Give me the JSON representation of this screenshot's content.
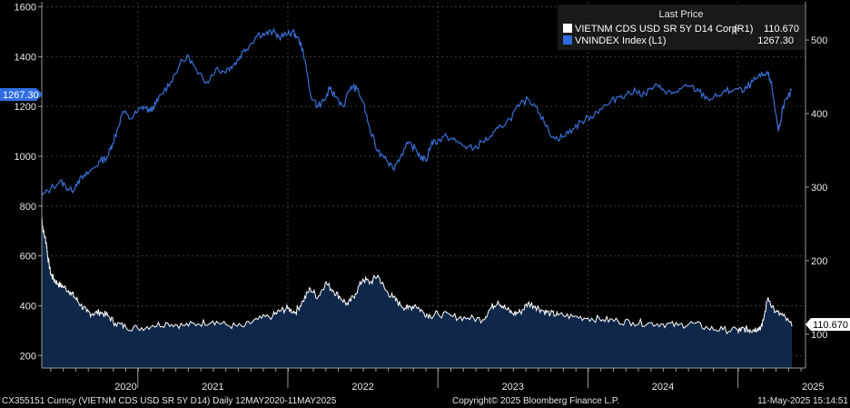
{
  "chart_data": {
    "type": "line",
    "legend_position": "top-right",
    "legend_title": "Last Price",
    "grid": true,
    "x_start": "12MAY2020",
    "x_end": "11MAY2025",
    "x_year_ticks": [
      "2020",
      "2021",
      "2022",
      "2023",
      "2024",
      "2025"
    ],
    "x_year_tick_positions": [
      2020.42,
      2021.0,
      2022.0,
      2023.0,
      2024.0,
      2025.0
    ],
    "left_axis": {
      "ylim": [
        150,
        1620
      ],
      "ticks": [
        200,
        400,
        600,
        800,
        1000,
        1200,
        1400,
        1600
      ]
    },
    "right_axis": {
      "ylim": [
        54,
        552
      ],
      "ticks": [
        100,
        200,
        300,
        400,
        500
      ]
    },
    "series": [
      {
        "name": "VIETNM CDS USD SR 5Y D14 Corp",
        "axis_tag": "(R1)",
        "axis": "right",
        "last_price": "110.670",
        "color": "#ffffff",
        "fill": "#0f2748",
        "x": [
          2020.36,
          2020.37,
          2020.39,
          2020.4,
          2020.42,
          2020.44,
          2020.47,
          2020.5,
          2020.55,
          2020.58,
          2020.62,
          2020.66,
          2020.7,
          2020.75,
          2020.8,
          2020.85,
          2020.92,
          2021.0,
          2021.1,
          2021.2,
          2021.3,
          2021.4,
          2021.5,
          2021.6,
          2021.7,
          2021.8,
          2021.9,
          2021.95,
          2022.0,
          2022.05,
          2022.1,
          2022.15,
          2022.2,
          2022.25,
          2022.3,
          2022.35,
          2022.4,
          2022.45,
          2022.5,
          2022.55,
          2022.6,
          2022.65,
          2022.7,
          2022.75,
          2022.8,
          2022.85,
          2022.9,
          2022.95,
          2023.0,
          2023.1,
          2023.2,
          2023.3,
          2023.35,
          2023.4,
          2023.45,
          2023.5,
          2023.55,
          2023.6,
          2023.65,
          2023.7,
          2023.75,
          2023.8,
          2023.9,
          2024.0,
          2024.1,
          2024.2,
          2024.3,
          2024.4,
          2024.5,
          2024.6,
          2024.7,
          2024.8,
          2024.9,
          2025.0,
          2025.02,
          2025.05,
          2025.08,
          2025.1,
          2025.13,
          2025.16,
          2025.2,
          2025.25,
          2025.3,
          2025.36
        ],
        "values": [
          260,
          240,
          225,
          205,
          182,
          175,
          168,
          165,
          158,
          150,
          140,
          130,
          128,
          130,
          125,
          115,
          110,
          108,
          112,
          115,
          112,
          114,
          118,
          112,
          110,
          120,
          125,
          132,
          135,
          130,
          145,
          162,
          150,
          170,
          160,
          150,
          140,
          155,
          175,
          170,
          180,
          160,
          150,
          140,
          135,
          140,
          130,
          125,
          128,
          124,
          122,
          120,
          135,
          145,
          135,
          128,
          130,
          142,
          138,
          132,
          128,
          126,
          124,
          122,
          120,
          118,
          116,
          115,
          114,
          112,
          115,
          108,
          106,
          105,
          106,
          107,
          106,
          106,
          108,
          110,
          150,
          130,
          125,
          110.67
        ]
      },
      {
        "name": "VNINDEX Index",
        "axis_tag": "(L1)",
        "axis": "left",
        "last_price": "1267.30",
        "color": "#3a6fd8",
        "x": [
          2020.36,
          2020.42,
          2020.48,
          2020.52,
          2020.56,
          2020.6,
          2020.65,
          2020.7,
          2020.75,
          2020.8,
          2020.83,
          2020.86,
          2020.9,
          2020.95,
          2021.0,
          2021.04,
          2021.08,
          2021.12,
          2021.16,
          2021.22,
          2021.28,
          2021.34,
          2021.4,
          2021.46,
          2021.52,
          2021.57,
          2021.62,
          2021.66,
          2021.7,
          2021.75,
          2021.8,
          2021.85,
          2021.9,
          2021.94,
          2022.0,
          2022.03,
          2022.06,
          2022.1,
          2022.15,
          2022.2,
          2022.25,
          2022.28,
          2022.32,
          2022.37,
          2022.42,
          2022.46,
          2022.5,
          2022.55,
          2022.6,
          2022.65,
          2022.7,
          2022.75,
          2022.8,
          2022.85,
          2022.88,
          2022.92,
          2022.96,
          2023.0,
          2023.06,
          2023.12,
          2023.18,
          2023.24,
          2023.3,
          2023.36,
          2023.42,
          2023.48,
          2023.54,
          2023.6,
          2023.66,
          2023.72,
          2023.78,
          2023.84,
          2023.9,
          2023.96,
          2024.02,
          2024.08,
          2024.14,
          2024.2,
          2024.26,
          2024.32,
          2024.38,
          2024.44,
          2024.5,
          2024.56,
          2024.62,
          2024.68,
          2024.74,
          2024.8,
          2024.86,
          2024.92,
          2024.98,
          2025.04,
          2025.1,
          2025.15,
          2025.2,
          2025.22,
          2025.24,
          2025.27,
          2025.3,
          2025.33,
          2025.36
        ],
        "values": [
          840,
          870,
          900,
          880,
          860,
          900,
          920,
          950,
          980,
          1000,
          1050,
          1100,
          1180,
          1150,
          1180,
          1200,
          1180,
          1210,
          1250,
          1300,
          1370,
          1400,
          1330,
          1300,
          1350,
          1340,
          1360,
          1380,
          1420,
          1450,
          1490,
          1490,
          1500,
          1480,
          1490,
          1500,
          1480,
          1430,
          1250,
          1200,
          1230,
          1270,
          1240,
          1200,
          1280,
          1270,
          1220,
          1100,
          1020,
          1000,
          950,
          1000,
          1050,
          1030,
          1000,
          980,
          1060,
          1060,
          1080,
          1060,
          1040,
          1030,
          1060,
          1080,
          1120,
          1150,
          1200,
          1230,
          1200,
          1120,
          1070,
          1080,
          1110,
          1140,
          1160,
          1190,
          1210,
          1240,
          1250,
          1260,
          1250,
          1280,
          1270,
          1250,
          1270,
          1280,
          1260,
          1230,
          1240,
          1260,
          1270,
          1260,
          1300,
          1320,
          1330,
          1300,
          1220,
          1100,
          1200,
          1230,
          1267.3
        ]
      }
    ]
  },
  "badges": {
    "left_value": "1267.30",
    "right_value": "110.670"
  },
  "footer": {
    "left": "CX355151 Curncy (VIETNM CDS USD SR 5Y D14)  Daily 12MAY2020-11MAY2025",
    "center": "Copyright© 2025 Bloomberg Finance L.P.",
    "right": "11-May-2025 15:14:51"
  }
}
